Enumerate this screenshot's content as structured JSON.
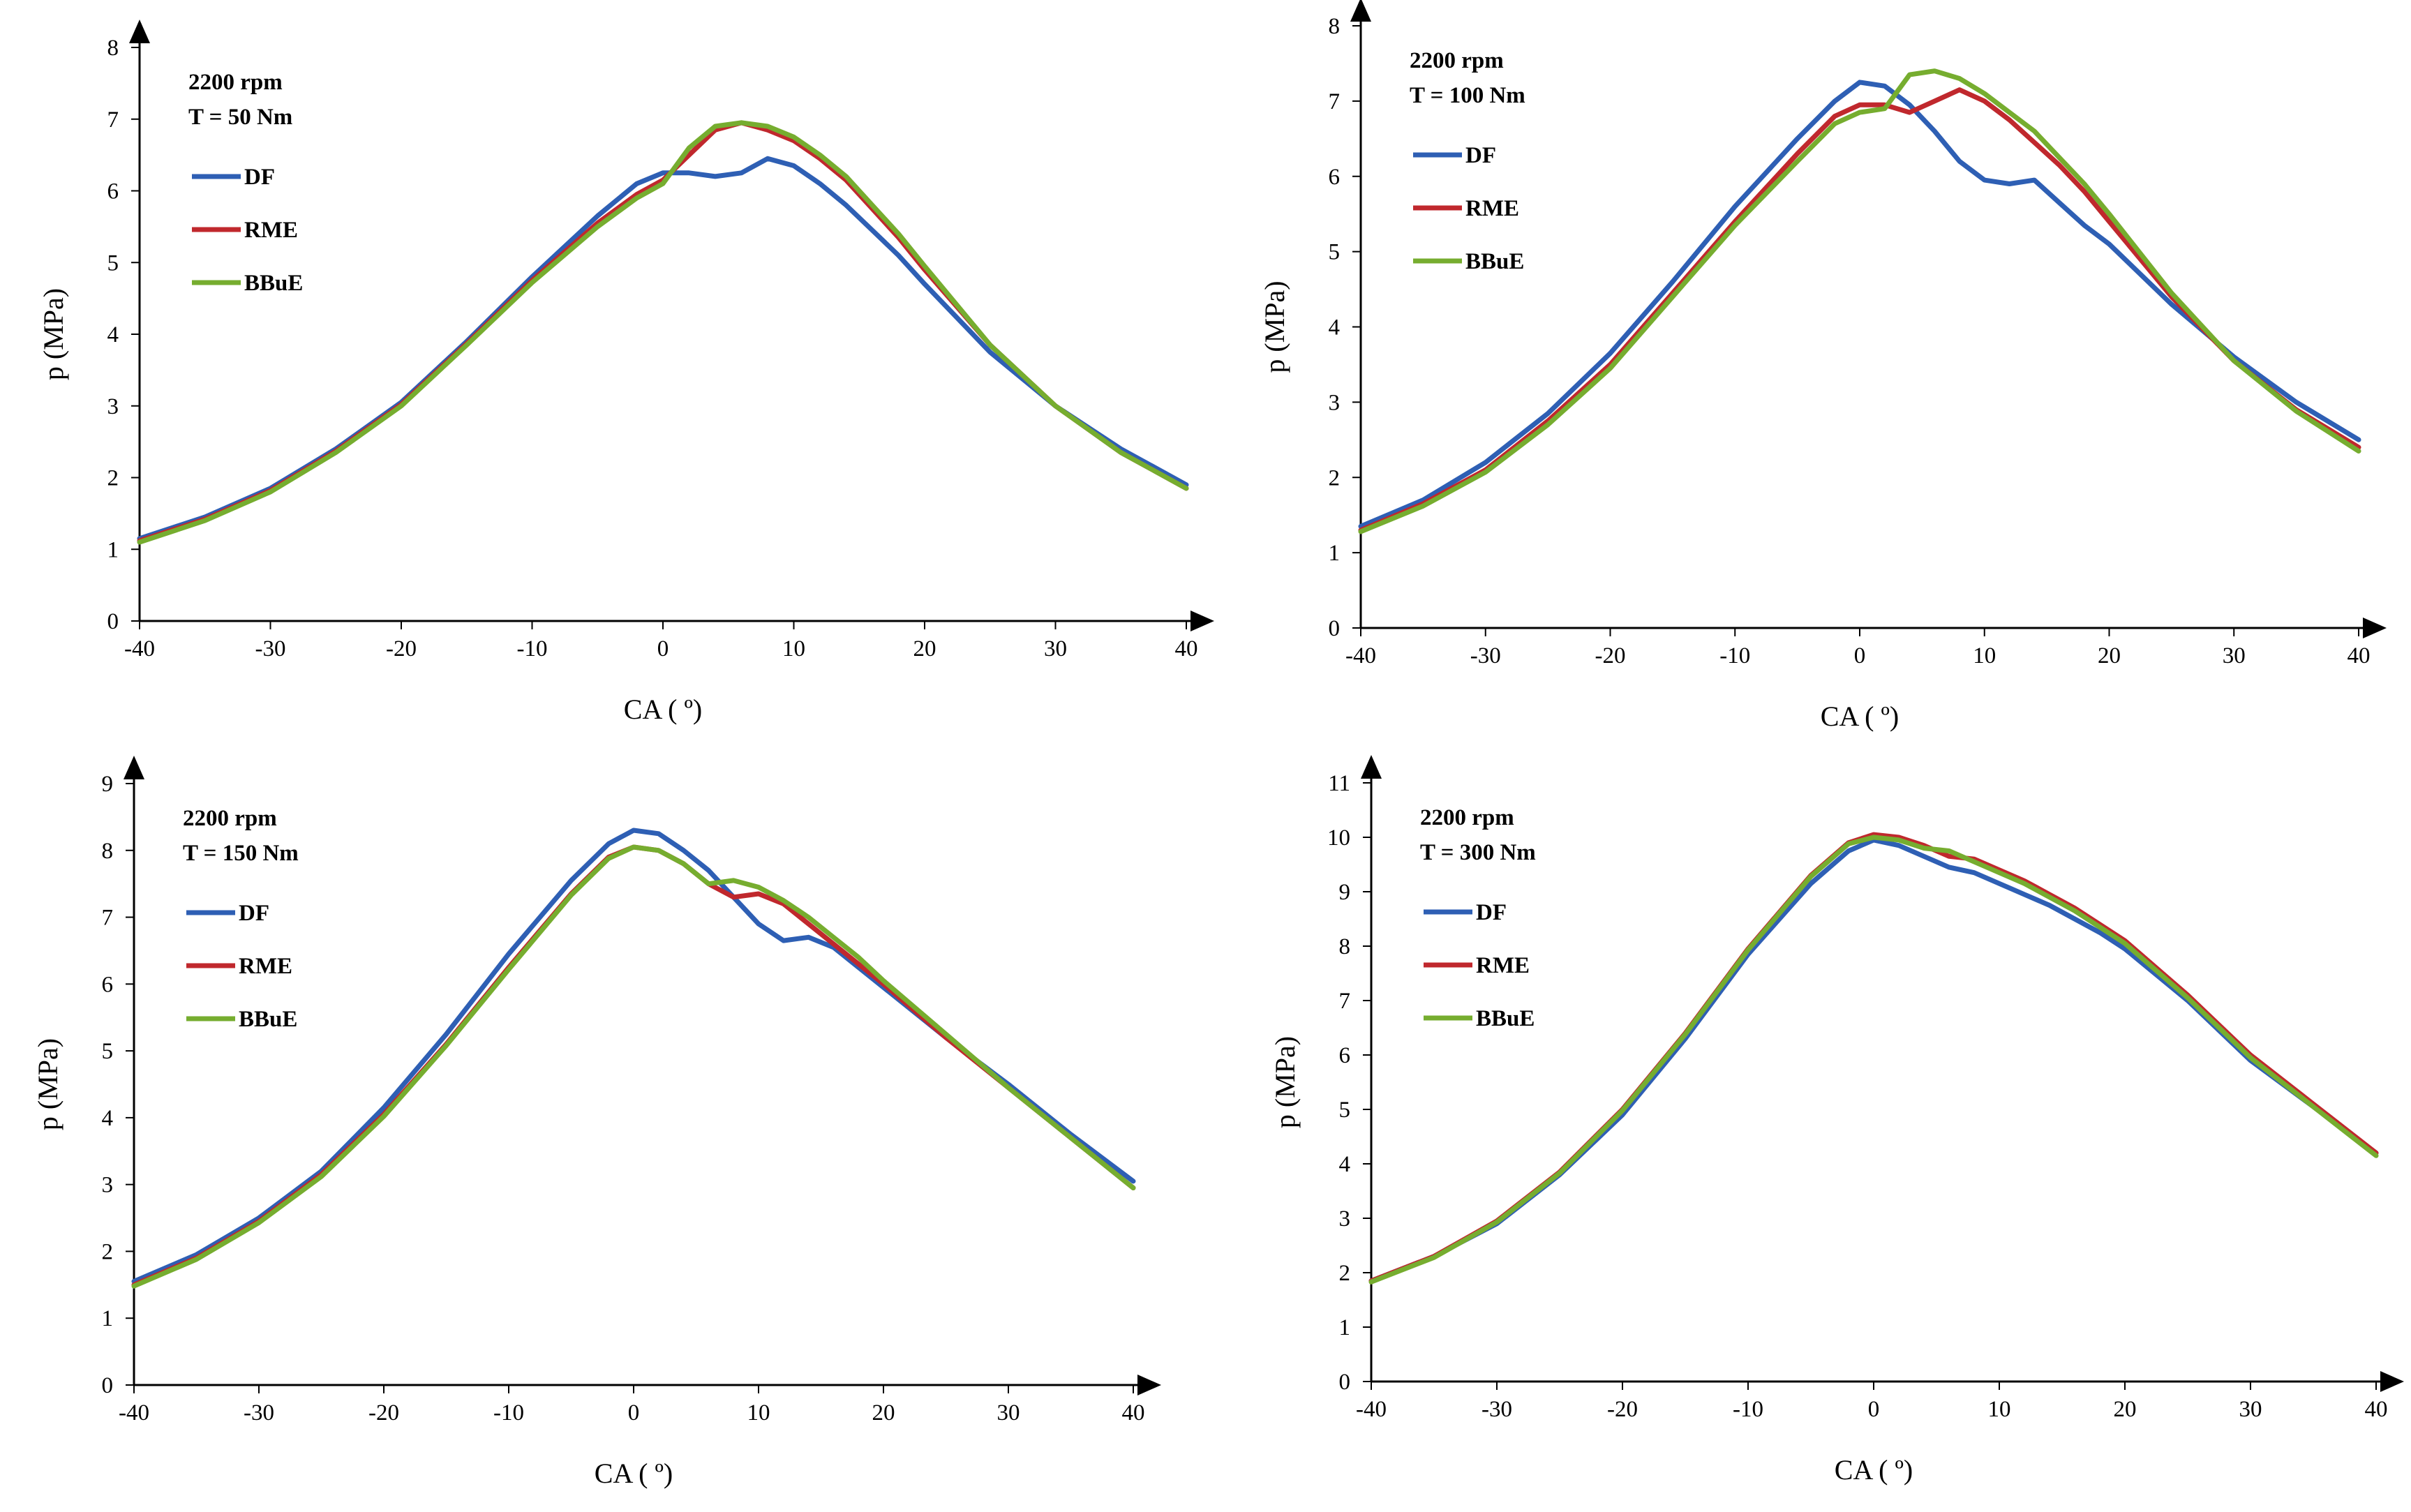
{
  "colors": {
    "DF": "#2e5fb4",
    "RME": "#c0282d",
    "BBuE": "#76ad2f",
    "axis": "#000000"
  },
  "chart_data": [
    {
      "type": "line",
      "xlabel": "CA ( º)",
      "ylabel": "p (MPa)",
      "xlim": [
        -40,
        40
      ],
      "ylim": [
        0,
        8
      ],
      "xticks": [
        "-40",
        "-30",
        "-20",
        "-10",
        "0",
        "10",
        "20",
        "30",
        "40"
      ],
      "yticks": [
        "0",
        "1",
        "2",
        "3",
        "4",
        "5",
        "6",
        "7",
        "8"
      ],
      "annotation": [
        "2200 rpm",
        "T = 50 Nm"
      ],
      "legend": [
        "DF",
        "RME",
        "BBuE"
      ],
      "series": [
        {
          "name": "DF",
          "color": "#2e5fb4",
          "x": [
            -40,
            -35,
            -30,
            -25,
            -20,
            -15,
            -10,
            -5,
            -2,
            0,
            2,
            4,
            6,
            8,
            10,
            12,
            14,
            16,
            18,
            20,
            25,
            30,
            35,
            40
          ],
          "y": [
            1.15,
            1.45,
            1.85,
            2.4,
            3.05,
            3.9,
            4.8,
            5.65,
            6.1,
            6.25,
            6.25,
            6.2,
            6.25,
            6.45,
            6.35,
            6.1,
            5.8,
            5.45,
            5.1,
            4.7,
            3.75,
            3.0,
            2.4,
            1.9
          ]
        },
        {
          "name": "RME",
          "color": "#c0282d",
          "x": [
            -40,
            -35,
            -30,
            -25,
            -20,
            -15,
            -10,
            -5,
            -2,
            0,
            2,
            4,
            6,
            8,
            10,
            12,
            14,
            16,
            18,
            20,
            25,
            30,
            35,
            40
          ],
          "y": [
            1.12,
            1.42,
            1.82,
            2.37,
            3.02,
            3.87,
            4.75,
            5.55,
            5.95,
            6.15,
            6.5,
            6.85,
            6.95,
            6.85,
            6.7,
            6.45,
            6.15,
            5.75,
            5.35,
            4.9,
            3.85,
            3.0,
            2.35,
            1.85
          ]
        },
        {
          "name": "BBuE",
          "color": "#76ad2f",
          "x": [
            -40,
            -35,
            -30,
            -25,
            -20,
            -15,
            -10,
            -5,
            -2,
            0,
            2,
            4,
            6,
            8,
            10,
            12,
            14,
            16,
            18,
            20,
            25,
            30,
            35,
            40
          ],
          "y": [
            1.1,
            1.4,
            1.8,
            2.35,
            3.0,
            3.85,
            4.72,
            5.5,
            5.9,
            6.1,
            6.6,
            6.9,
            6.95,
            6.9,
            6.75,
            6.5,
            6.2,
            5.8,
            5.4,
            4.95,
            3.85,
            3.0,
            2.35,
            1.85
          ]
        }
      ]
    },
    {
      "type": "line",
      "xlabel": "CA ( º)",
      "ylabel": "p (MPa)",
      "xlim": [
        -40,
        40
      ],
      "ylim": [
        0,
        8
      ],
      "xticks": [
        "-40",
        "-30",
        "-20",
        "-10",
        "0",
        "10",
        "20",
        "30",
        "40"
      ],
      "yticks": [
        "0",
        "1",
        "2",
        "3",
        "4",
        "5",
        "6",
        "7",
        "8"
      ],
      "annotation": [
        "2200 rpm",
        "T = 100 Nm"
      ],
      "legend": [
        "DF",
        "RME",
        "BBuE"
      ],
      "series": [
        {
          "name": "DF",
          "color": "#2e5fb4",
          "x": [
            -40,
            -35,
            -30,
            -25,
            -20,
            -15,
            -10,
            -5,
            -2,
            0,
            2,
            4,
            6,
            8,
            10,
            12,
            14,
            16,
            18,
            20,
            25,
            30,
            35,
            40
          ],
          "y": [
            1.35,
            1.7,
            2.2,
            2.85,
            3.65,
            4.6,
            5.6,
            6.5,
            7.0,
            7.25,
            7.2,
            6.95,
            6.6,
            6.2,
            5.95,
            5.9,
            5.95,
            5.65,
            5.35,
            5.1,
            4.3,
            3.6,
            3.0,
            2.5
          ]
        },
        {
          "name": "RME",
          "color": "#c0282d",
          "x": [
            -40,
            -35,
            -30,
            -25,
            -20,
            -15,
            -10,
            -5,
            -2,
            0,
            2,
            4,
            6,
            8,
            10,
            12,
            14,
            16,
            18,
            20,
            25,
            30,
            35,
            40
          ],
          "y": [
            1.3,
            1.65,
            2.1,
            2.75,
            3.5,
            4.45,
            5.4,
            6.3,
            6.8,
            6.95,
            6.95,
            6.85,
            7.0,
            7.15,
            7.0,
            6.75,
            6.45,
            6.15,
            5.8,
            5.4,
            4.4,
            3.55,
            2.9,
            2.4
          ]
        },
        {
          "name": "BBuE",
          "color": "#76ad2f",
          "x": [
            -40,
            -35,
            -30,
            -25,
            -20,
            -15,
            -10,
            -5,
            -2,
            0,
            2,
            4,
            6,
            8,
            10,
            12,
            14,
            16,
            18,
            20,
            25,
            30,
            35,
            40
          ],
          "y": [
            1.28,
            1.62,
            2.07,
            2.7,
            3.45,
            4.4,
            5.35,
            6.2,
            6.7,
            6.85,
            6.9,
            7.35,
            7.4,
            7.3,
            7.1,
            6.85,
            6.6,
            6.25,
            5.9,
            5.5,
            4.45,
            3.55,
            2.88,
            2.35
          ]
        }
      ]
    },
    {
      "type": "line",
      "xlabel": "CA ( º)",
      "ylabel": "p (MPa)",
      "xlim": [
        -40,
        40
      ],
      "ylim": [
        0,
        9
      ],
      "xticks": [
        "-40",
        "-30",
        "-20",
        "-10",
        "0",
        "10",
        "20",
        "30",
        "40"
      ],
      "yticks": [
        "0",
        "1",
        "2",
        "3",
        "4",
        "5",
        "6",
        "7",
        "8",
        "9"
      ],
      "annotation": [
        "2200 rpm",
        "T = 150 Nm"
      ],
      "legend": [
        "DF",
        "RME",
        "BBuE"
      ],
      "series": [
        {
          "name": "DF",
          "color": "#2e5fb4",
          "x": [
            -40,
            -35,
            -30,
            -25,
            -20,
            -15,
            -10,
            -5,
            -2,
            0,
            2,
            4,
            6,
            8,
            10,
            12,
            14,
            16,
            18,
            20,
            25,
            30,
            35,
            40
          ],
          "y": [
            1.55,
            1.95,
            2.5,
            3.2,
            4.15,
            5.25,
            6.45,
            7.55,
            8.1,
            8.3,
            8.25,
            8.0,
            7.7,
            7.3,
            6.9,
            6.65,
            6.7,
            6.55,
            6.25,
            5.95,
            5.2,
            4.5,
            3.75,
            3.05
          ]
        },
        {
          "name": "RME",
          "color": "#c0282d",
          "x": [
            -40,
            -35,
            -30,
            -25,
            -20,
            -15,
            -10,
            -5,
            -2,
            0,
            2,
            4,
            6,
            8,
            10,
            12,
            14,
            16,
            18,
            20,
            25,
            30,
            35,
            40
          ],
          "y": [
            1.5,
            1.9,
            2.45,
            3.15,
            4.05,
            5.1,
            6.25,
            7.35,
            7.9,
            8.05,
            8.0,
            7.8,
            7.5,
            7.3,
            7.35,
            7.2,
            6.9,
            6.6,
            6.3,
            6.0,
            5.2,
            4.45,
            3.7,
            2.95
          ]
        },
        {
          "name": "BBuE",
          "color": "#76ad2f",
          "x": [
            -40,
            -35,
            -30,
            -25,
            -20,
            -15,
            -10,
            -5,
            -2,
            0,
            2,
            4,
            6,
            8,
            10,
            12,
            14,
            16,
            18,
            20,
            25,
            30,
            35,
            40
          ],
          "y": [
            1.48,
            1.88,
            2.43,
            3.12,
            4.02,
            5.08,
            6.22,
            7.33,
            7.88,
            8.05,
            8.0,
            7.8,
            7.5,
            7.55,
            7.45,
            7.25,
            7.0,
            6.7,
            6.4,
            6.05,
            5.25,
            4.45,
            3.7,
            2.95
          ]
        }
      ]
    },
    {
      "type": "line",
      "xlabel": "CA ( º)",
      "ylabel": "p (MPa)",
      "xlim": [
        -40,
        40
      ],
      "ylim": [
        0,
        11
      ],
      "xticks": [
        "-40",
        "-30",
        "-20",
        "-10",
        "0",
        "10",
        "20",
        "30",
        "40"
      ],
      "yticks": [
        "0",
        "1",
        "2",
        "3",
        "4",
        "5",
        "6",
        "7",
        "8",
        "9",
        "10",
        "11"
      ],
      "annotation": [
        "2200 rpm",
        "T = 300 Nm"
      ],
      "legend": [
        "DF",
        "RME",
        "BBuE"
      ],
      "series": [
        {
          "name": "DF",
          "color": "#2e5fb4",
          "x": [
            -40,
            -35,
            -30,
            -25,
            -20,
            -15,
            -10,
            -5,
            -2,
            0,
            2,
            4,
            6,
            8,
            10,
            12,
            14,
            16,
            18,
            20,
            25,
            30,
            35,
            40
          ],
          "y": [
            1.85,
            2.3,
            2.9,
            3.8,
            4.9,
            6.3,
            7.85,
            9.15,
            9.75,
            9.95,
            9.85,
            9.65,
            9.45,
            9.35,
            9.15,
            8.95,
            8.75,
            8.5,
            8.25,
            7.95,
            7.0,
            5.9,
            5.05,
            4.2
          ]
        },
        {
          "name": "RME",
          "color": "#c0282d",
          "x": [
            -40,
            -35,
            -30,
            -25,
            -20,
            -15,
            -10,
            -5,
            -2,
            0,
            2,
            4,
            6,
            8,
            10,
            12,
            14,
            16,
            18,
            20,
            25,
            30,
            35,
            40
          ],
          "y": [
            1.85,
            2.3,
            2.95,
            3.85,
            5.0,
            6.4,
            7.95,
            9.3,
            9.9,
            10.05,
            10.0,
            9.85,
            9.65,
            9.6,
            9.4,
            9.2,
            8.95,
            8.7,
            8.4,
            8.1,
            7.1,
            6.0,
            5.1,
            4.2
          ]
        },
        {
          "name": "BBuE",
          "color": "#76ad2f",
          "x": [
            -40,
            -35,
            -30,
            -25,
            -20,
            -15,
            -10,
            -5,
            -2,
            0,
            2,
            4,
            6,
            8,
            10,
            12,
            14,
            16,
            18,
            20,
            25,
            30,
            35,
            40
          ],
          "y": [
            1.83,
            2.28,
            2.93,
            3.83,
            4.98,
            6.38,
            7.93,
            9.28,
            9.88,
            10.0,
            9.95,
            9.8,
            9.75,
            9.55,
            9.35,
            9.15,
            8.9,
            8.65,
            8.35,
            8.05,
            7.05,
            5.95,
            5.05,
            4.15
          ]
        }
      ]
    }
  ]
}
